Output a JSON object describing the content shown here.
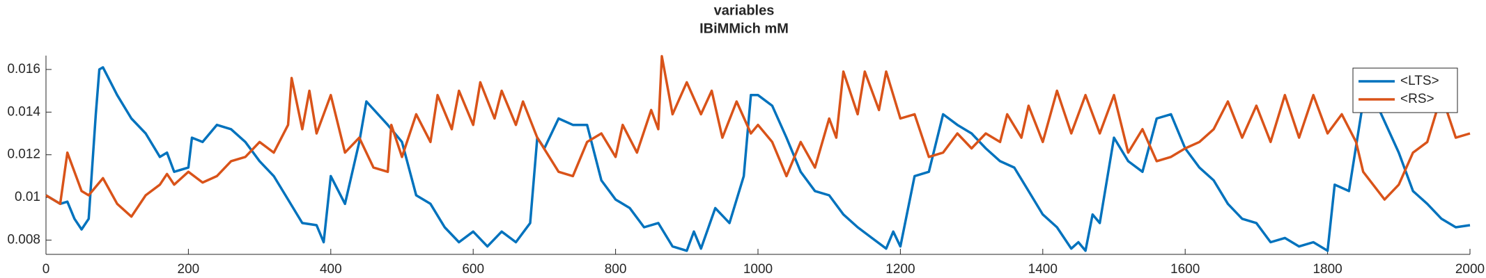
{
  "chart_data": {
    "type": "line",
    "title": "variables",
    "subtitle": "IBiMMich mM",
    "xlim": [
      0,
      2000
    ],
    "xticks": [
      0,
      200,
      400,
      600,
      800,
      1000,
      1200,
      1400,
      1600,
      1800,
      2000
    ],
    "ylim": [
      0.00733,
      0.01665
    ],
    "yticks": [
      0.008,
      0.01,
      0.012,
      0.014,
      0.016
    ],
    "legend": "upper right",
    "series": [
      {
        "name": "<LTS>",
        "color": "#0072bd",
        "x": [
          0,
          20,
          30,
          40,
          50,
          60,
          70,
          75,
          80,
          100,
          120,
          140,
          160,
          170,
          180,
          200,
          205,
          220,
          240,
          260,
          280,
          300,
          320,
          340,
          360,
          380,
          390,
          400,
          420,
          440,
          450,
          480,
          500,
          520,
          540,
          560,
          580,
          600,
          620,
          640,
          660,
          680,
          690,
          700,
          720,
          740,
          760,
          780,
          800,
          820,
          840,
          860,
          880,
          900,
          910,
          920,
          940,
          960,
          980,
          990,
          1000,
          1020,
          1040,
          1060,
          1080,
          1100,
          1120,
          1140,
          1160,
          1180,
          1190,
          1200,
          1220,
          1240,
          1260,
          1280,
          1300,
          1320,
          1340,
          1360,
          1380,
          1400,
          1420,
          1440,
          1450,
          1460,
          1470,
          1480,
          1500,
          1520,
          1540,
          1560,
          1580,
          1600,
          1620,
          1640,
          1660,
          1680,
          1700,
          1720,
          1740,
          1760,
          1780,
          1800,
          1810,
          1830,
          1850,
          1870,
          1900,
          1920,
          1940,
          1960,
          1980,
          2000
        ],
        "values": [
          0.0101,
          0.0097,
          0.0098,
          0.009,
          0.0085,
          0.009,
          0.0139,
          0.016,
          0.0161,
          0.0148,
          0.0137,
          0.013,
          0.0119,
          0.0121,
          0.0112,
          0.0114,
          0.0128,
          0.0126,
          0.0134,
          0.0132,
          0.0126,
          0.0117,
          0.011,
          0.0099,
          0.0088,
          0.0087,
          0.0079,
          0.011,
          0.0097,
          0.0126,
          0.0145,
          0.0134,
          0.0126,
          0.0101,
          0.0097,
          0.0086,
          0.0079,
          0.0084,
          0.0077,
          0.0084,
          0.0079,
          0.0088,
          0.0128,
          0.0123,
          0.0137,
          0.0134,
          0.0134,
          0.0108,
          0.0099,
          0.0095,
          0.0086,
          0.0088,
          0.0077,
          0.0075,
          0.0084,
          0.0076,
          0.0095,
          0.0088,
          0.011,
          0.0148,
          0.0148,
          0.0143,
          0.0128,
          0.0112,
          0.0103,
          0.0101,
          0.0092,
          0.0086,
          0.0081,
          0.0076,
          0.0084,
          0.0077,
          0.011,
          0.0112,
          0.0139,
          0.0134,
          0.013,
          0.0123,
          0.0117,
          0.0114,
          0.0103,
          0.0092,
          0.0086,
          0.0076,
          0.0079,
          0.0075,
          0.0092,
          0.0088,
          0.0128,
          0.0117,
          0.0112,
          0.0137,
          0.0139,
          0.0123,
          0.0114,
          0.0108,
          0.0097,
          0.009,
          0.0088,
          0.0079,
          0.0081,
          0.0077,
          0.0079,
          0.0075,
          0.0106,
          0.0103,
          0.0145,
          0.0143,
          0.0121,
          0.0103,
          0.0097,
          0.009,
          0.0086,
          0.0087
        ]
      },
      {
        "name": "<RS>",
        "color": "#d95319",
        "x": [
          0,
          20,
          30,
          50,
          60,
          80,
          100,
          120,
          140,
          160,
          170,
          180,
          200,
          220,
          240,
          260,
          280,
          300,
          320,
          340,
          345,
          360,
          370,
          380,
          400,
          420,
          440,
          460,
          480,
          485,
          500,
          520,
          540,
          550,
          570,
          580,
          600,
          610,
          630,
          640,
          660,
          670,
          690,
          720,
          740,
          760,
          780,
          800,
          810,
          830,
          850,
          860,
          865,
          880,
          900,
          920,
          935,
          950,
          970,
          990,
          1000,
          1020,
          1040,
          1060,
          1080,
          1100,
          1110,
          1120,
          1140,
          1150,
          1170,
          1180,
          1200,
          1220,
          1240,
          1260,
          1280,
          1300,
          1320,
          1340,
          1350,
          1370,
          1380,
          1400,
          1420,
          1440,
          1460,
          1480,
          1500,
          1520,
          1540,
          1560,
          1580,
          1600,
          1620,
          1640,
          1660,
          1680,
          1700,
          1720,
          1740,
          1760,
          1780,
          1800,
          1820,
          1840,
          1850,
          1880,
          1900,
          1920,
          1940,
          1960,
          1980,
          2000
        ],
        "values": [
          0.0101,
          0.0097,
          0.0121,
          0.0103,
          0.0101,
          0.0109,
          0.0097,
          0.0091,
          0.0101,
          0.0106,
          0.0111,
          0.0106,
          0.0112,
          0.0107,
          0.011,
          0.0117,
          0.0119,
          0.0126,
          0.0121,
          0.0134,
          0.0156,
          0.0132,
          0.015,
          0.013,
          0.0148,
          0.0121,
          0.0128,
          0.0114,
          0.0112,
          0.0134,
          0.0119,
          0.0139,
          0.0126,
          0.0148,
          0.0132,
          0.015,
          0.0134,
          0.0154,
          0.0137,
          0.015,
          0.0134,
          0.0145,
          0.0128,
          0.0112,
          0.011,
          0.0126,
          0.013,
          0.0119,
          0.0134,
          0.0121,
          0.0141,
          0.0132,
          0.01662,
          0.0139,
          0.0154,
          0.0139,
          0.015,
          0.0128,
          0.0145,
          0.013,
          0.0134,
          0.0126,
          0.011,
          0.0126,
          0.0114,
          0.0137,
          0.0128,
          0.0159,
          0.0139,
          0.0159,
          0.0141,
          0.0159,
          0.0137,
          0.0139,
          0.0119,
          0.0121,
          0.013,
          0.0123,
          0.013,
          0.0126,
          0.0139,
          0.0128,
          0.0143,
          0.0126,
          0.015,
          0.013,
          0.0148,
          0.013,
          0.0148,
          0.0121,
          0.0132,
          0.0117,
          0.0119,
          0.0123,
          0.0126,
          0.0132,
          0.0145,
          0.0128,
          0.0143,
          0.0126,
          0.0148,
          0.0128,
          0.0148,
          0.013,
          0.0139,
          0.0126,
          0.0112,
          0.0099,
          0.0106,
          0.0121,
          0.0126,
          0.0148,
          0.0128,
          0.013
        ]
      }
    ]
  }
}
